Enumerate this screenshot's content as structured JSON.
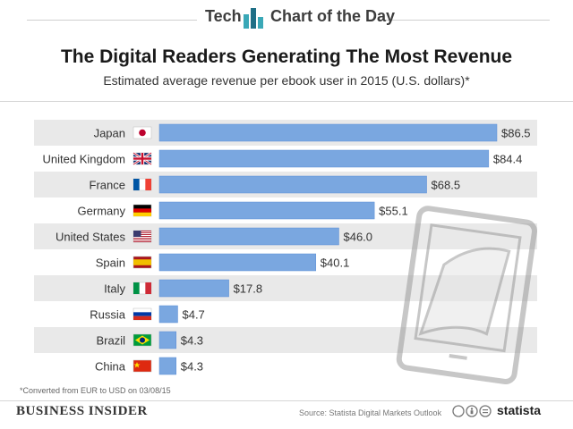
{
  "header": {
    "left": "Tech",
    "right": "Chart of the Day"
  },
  "title": "The Digital Readers Generating The Most Revenue",
  "subtitle": "Estimated average revenue per ebook user in 2015 (U.S. dollars)*",
  "footnote": "*Converted from EUR to USD on 03/08/15",
  "footer": {
    "brand": "BUSINESS INSIDER",
    "source": "Source: Statista Digital Markets Outlook",
    "statista": "statista"
  },
  "colors": {
    "bar": "#7aa7e0",
    "bar_stroke": "#5d8fd6",
    "stripe": "#e9e9e9",
    "logo": "#3aa8b7",
    "logo_dark": "#1f6f86"
  },
  "chart_data": {
    "type": "bar",
    "orientation": "horizontal",
    "categories": [
      "Japan",
      "United Kingdom",
      "France",
      "Germany",
      "United States",
      "Spain",
      "Italy",
      "Russia",
      "Brazil",
      "China"
    ],
    "values": [
      86.5,
      84.4,
      68.5,
      55.1,
      46.0,
      40.1,
      17.8,
      4.7,
      4.3,
      4.3
    ],
    "value_labels": [
      "$86.5",
      "$84.4",
      "$68.5",
      "$55.1",
      "$46.0",
      "$40.1",
      "$17.8",
      "$4.7",
      "$4.3",
      "$4.3"
    ],
    "flags": [
      "japan-flag",
      "uk-flag",
      "france-flag",
      "germany-flag",
      "usa-flag",
      "spain-flag",
      "italy-flag",
      "russia-flag",
      "brazil-flag",
      "china-flag"
    ],
    "xlim": [
      0,
      86.5
    ],
    "grid": false,
    "legend": "none",
    "alternating_row_stripes": true,
    "title": "The Digital Readers Generating The Most Revenue",
    "subtitle": "Estimated average revenue per ebook user in 2015 (U.S. dollars)*"
  }
}
